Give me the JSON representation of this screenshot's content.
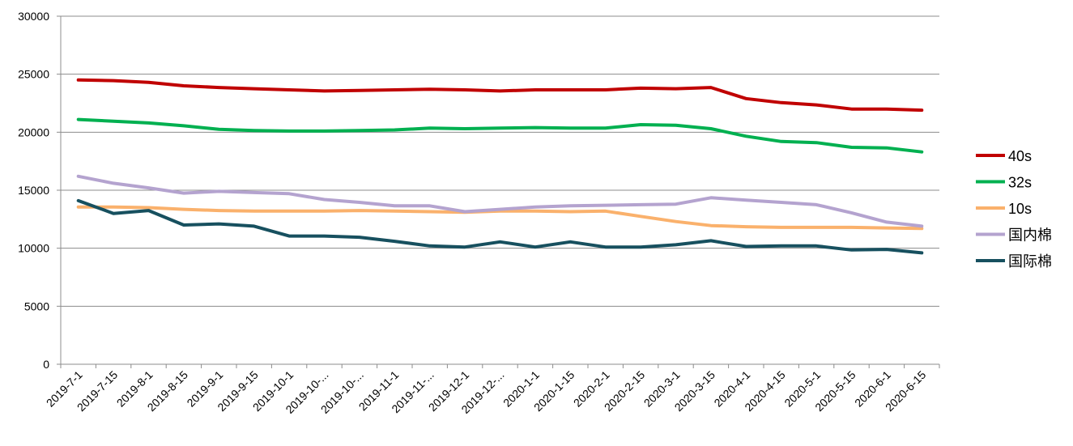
{
  "chart_data": {
    "type": "line",
    "title": "",
    "xlabel": "",
    "ylabel": "",
    "ylim": [
      0,
      30000
    ],
    "yticks": [
      0,
      5000,
      10000,
      15000,
      20000,
      25000,
      30000
    ],
    "grid": true,
    "legend_position": "right",
    "categories": [
      "2019-7-1",
      "2019-7-15",
      "2019-8-1",
      "2019-8-15",
      "2019-9-1",
      "2019-9-15",
      "2019-10-1",
      "2019-10-...",
      "2019-10-...",
      "2019-11-1",
      "2019-11-...",
      "2019-12-1",
      "2019-12-...",
      "2020-1-1",
      "2020-1-15",
      "2020-2-1",
      "2020-2-15",
      "2020-3-1",
      "2020-3-15",
      "2020-4-1",
      "2020-4-15",
      "2020-5-1",
      "2020-5-15",
      "2020-6-1",
      "2020-6-15"
    ],
    "series": [
      {
        "name": "40s",
        "color": "#C00000",
        "values": [
          24500,
          24450,
          24300,
          24000,
          23850,
          23750,
          23650,
          23550,
          23600,
          23650,
          23700,
          23650,
          23550,
          23650,
          23650,
          23650,
          23800,
          23750,
          23850,
          22900,
          22550,
          22350,
          22000,
          22000,
          21900
        ]
      },
      {
        "name": "32s",
        "color": "#00B050",
        "values": [
          21100,
          20950,
          20800,
          20550,
          20250,
          20150,
          20100,
          20100,
          20150,
          20200,
          20350,
          20300,
          20350,
          20400,
          20350,
          20350,
          20650,
          20600,
          20300,
          19650,
          19200,
          19100,
          18700,
          18650,
          18300
        ]
      },
      {
        "name": "10s",
        "color": "#FAB16C",
        "values": [
          13550,
          13550,
          13500,
          13350,
          13250,
          13200,
          13200,
          13200,
          13250,
          13200,
          13150,
          13100,
          13200,
          13200,
          13150,
          13200,
          12750,
          12300,
          11950,
          11850,
          11800,
          11800,
          11800,
          11750,
          11700
        ]
      },
      {
        "name": "国内棉",
        "color": "#B4A3CF",
        "values": [
          16200,
          15600,
          15200,
          14750,
          14900,
          14800,
          14700,
          14200,
          13950,
          13650,
          13650,
          13150,
          13350,
          13550,
          13650,
          13700,
          13750,
          13800,
          14350,
          14150,
          13950,
          13750,
          13050,
          12250,
          11900
        ]
      },
      {
        "name": "国际棉",
        "color": "#17505F",
        "values": [
          14100,
          13000,
          13250,
          12000,
          12100,
          11900,
          11050,
          11050,
          10950,
          10600,
          10200,
          10100,
          10550,
          10100,
          10550,
          10100,
          10100,
          10300,
          10650,
          10150,
          10200,
          10200,
          9850,
          9900,
          9600
        ]
      }
    ]
  }
}
